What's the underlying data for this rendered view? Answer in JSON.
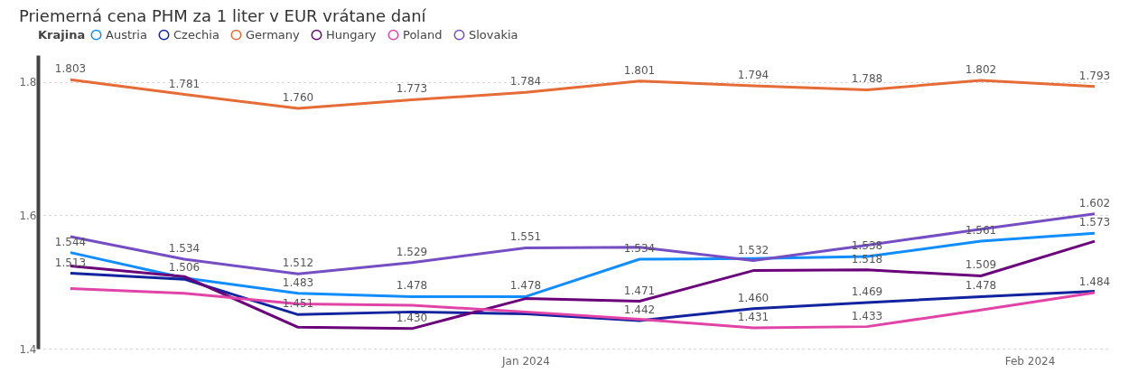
{
  "chart_data": {
    "type": "line",
    "title": "Priemerná cena PHM za 1 liter v EUR vrátane daní",
    "legend_title": "Krajina",
    "legend": "top left",
    "grid": "y",
    "line_style": "solid",
    "marker": "none",
    "x": [
      "2023-12-04",
      "2023-12-11",
      "2023-12-18",
      "2023-12-25",
      "2024-01-01",
      "2024-01-08",
      "2024-01-15",
      "2024-01-22",
      "2024-01-29",
      "2024-02-05"
    ],
    "xlim": [
      "2023-12-02",
      "2024-02-06"
    ],
    "xticks": [
      {
        "value": "2024-01-01",
        "label": "Jan 2024"
      },
      {
        "value": "2024-02-01",
        "label": "Feb 2024"
      }
    ],
    "ylim": [
      1.4,
      1.84
    ],
    "yticks": [
      1.4,
      1.6,
      1.8
    ],
    "series": [
      {
        "name": "Austria",
        "color": "#118dff",
        "values": [
          1.544,
          1.506,
          1.483,
          1.478,
          1.478,
          1.534,
          1.535,
          1.538,
          1.561,
          1.573
        ],
        "value_labels": [
          "1.544",
          "1.506",
          "1.483",
          "1.478",
          "1.478",
          "1.534",
          null,
          "1.538",
          "1.561",
          "1.573"
        ]
      },
      {
        "name": "Czechia",
        "color": "#12239e",
        "values": [
          1.513,
          1.504,
          1.451,
          1.455,
          1.452,
          1.442,
          1.46,
          1.469,
          1.478,
          1.486
        ],
        "value_labels": [
          "1.513",
          null,
          "1.451",
          null,
          null,
          "1.442",
          "1.460",
          "1.469",
          "1.478",
          null
        ]
      },
      {
        "name": "Germany",
        "color": "#e66c37",
        "values": [
          1.803,
          1.781,
          1.76,
          1.773,
          1.784,
          1.801,
          1.794,
          1.788,
          1.802,
          1.793
        ],
        "value_labels": [
          "1.803",
          "1.781",
          "1.760",
          "1.773",
          "1.784",
          "1.801",
          "1.794",
          "1.788",
          "1.802",
          "1.793"
        ]
      },
      {
        "name": "Hungary",
        "color": "#6b007b",
        "values": [
          1.524,
          1.508,
          1.432,
          1.43,
          1.475,
          1.471,
          1.517,
          1.518,
          1.509,
          1.561
        ],
        "value_labels": [
          null,
          null,
          null,
          "1.430",
          null,
          "1.471",
          null,
          "1.518",
          "1.509",
          null
        ]
      },
      {
        "name": "Poland",
        "color": "#e044a7",
        "values": [
          1.49,
          1.483,
          1.467,
          1.465,
          1.455,
          1.444,
          1.431,
          1.433,
          1.458,
          1.484
        ],
        "value_labels": [
          null,
          null,
          null,
          null,
          null,
          null,
          "1.431",
          "1.433",
          null,
          "1.484"
        ]
      },
      {
        "name": "Slovakia",
        "color": "#744ec2",
        "values": [
          1.568,
          1.534,
          1.512,
          1.529,
          1.551,
          1.552,
          1.532,
          1.555,
          1.579,
          1.602
        ],
        "value_labels": [
          null,
          "1.534",
          "1.512",
          "1.529",
          "1.551",
          null,
          "1.532",
          null,
          null,
          "1.602"
        ]
      }
    ]
  }
}
